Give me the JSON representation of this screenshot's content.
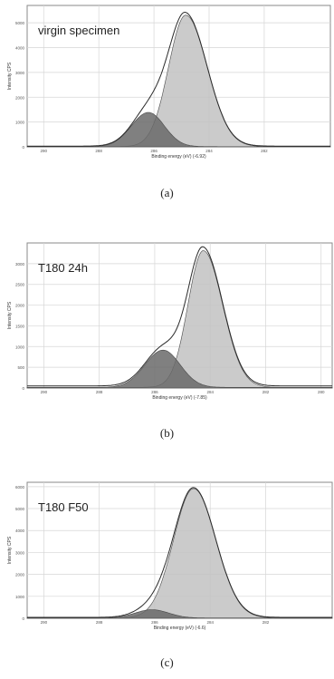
{
  "chart_data": [
    {
      "type": "area",
      "panel_label": "virgin specimen",
      "caption": "(a)",
      "xlabel": "Binding energy (eV) (-6.92)",
      "ylabel": "Intensity CPS",
      "xlim": [
        290.6,
        279.6
      ],
      "ylim": [
        0,
        5700
      ],
      "x_ticks": [
        "290",
        "288",
        "286",
        "284",
        "282"
      ],
      "y_ticks": [
        "0",
        "1000",
        "2000",
        "3000",
        "4000",
        "5000"
      ],
      "grid": true,
      "peaks": [
        {
          "center": 284.85,
          "height": 5300,
          "sigma_left": 0.62,
          "sigma_right": 0.78,
          "fill": "#c2c2c2"
        },
        {
          "center": 286.2,
          "height": 1380,
          "sigma_left": 0.62,
          "sigma_right": 0.58,
          "fill": "#6a6a6a"
        }
      ],
      "baseline": 30
    },
    {
      "type": "area",
      "panel_label": "T180 24h",
      "caption": "(b)",
      "xlabel": "Binding energy (eV) (-7.85)",
      "ylabel": "Intensity CPS",
      "xlim": [
        290.6,
        279.6
      ],
      "ylim": [
        0,
        3500
      ],
      "x_ticks": [
        "290",
        "288",
        "286",
        "284",
        "282",
        "280"
      ],
      "y_ticks": [
        "0",
        "500",
        "1000",
        "1500",
        "2000",
        "2500",
        "3000"
      ],
      "grid": true,
      "peaks": [
        {
          "center": 284.25,
          "height": 3300,
          "sigma_left": 0.55,
          "sigma_right": 0.7,
          "fill": "#c2c2c2"
        },
        {
          "center": 285.7,
          "height": 900,
          "sigma_left": 0.65,
          "sigma_right": 0.62,
          "fill": "#6a6a6a"
        }
      ],
      "baseline": 50
    },
    {
      "type": "area",
      "panel_label": "T180 F50",
      "caption": "(c)",
      "xlabel": "Binding energy (eV) (-6.6)",
      "ylabel": "Intensity CPS",
      "xlim": [
        290.6,
        279.6
      ],
      "ylim": [
        0,
        6200
      ],
      "x_ticks": [
        "290",
        "288",
        "286",
        "284",
        "282"
      ],
      "y_ticks": [
        "0",
        "1000",
        "2000",
        "3000",
        "4000",
        "5000",
        "6000"
      ],
      "grid": true,
      "peaks": [
        {
          "center": 284.6,
          "height": 5900,
          "sigma_left": 0.72,
          "sigma_right": 0.8,
          "fill": "#c2c2c2"
        },
        {
          "center": 286.1,
          "height": 380,
          "sigma_left": 0.6,
          "sigma_right": 0.6,
          "fill": "#6a6a6a"
        }
      ],
      "baseline": 40
    }
  ]
}
